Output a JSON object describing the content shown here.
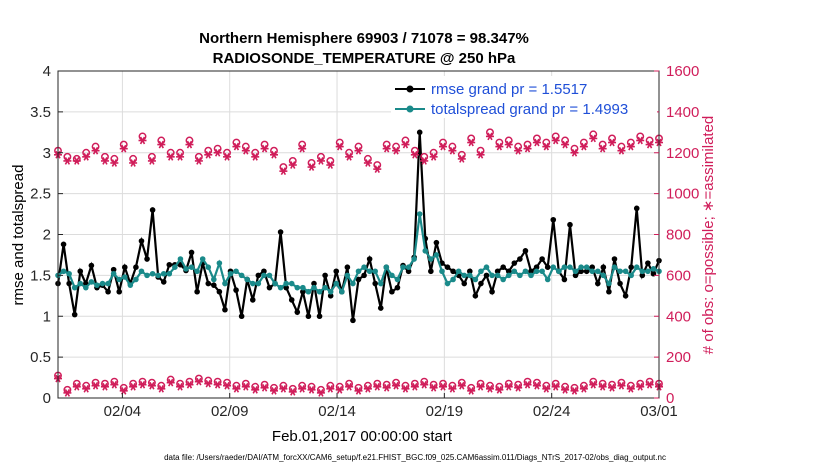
{
  "chart_data": {
    "type": "line",
    "title": "Northern Hemisphere 69903 / 71078 = 98.347%",
    "subtitle": "RADIOSONDE_TEMPERATURE @ 250 hPa",
    "xlabel": "Feb.01,2017 00:00:00 start",
    "ylabel_left": "rmse and totalspread",
    "ylabel_right": "# of obs: o=possible; ∗=assimilated",
    "ylim_left": [
      0,
      4
    ],
    "ylim_right": [
      0,
      1600
    ],
    "xlim_days": [
      0,
      28
    ],
    "yticks_left": [
      "0",
      "0.5",
      "1",
      "1.5",
      "2",
      "2.5",
      "3",
      "3.5",
      "4"
    ],
    "yticks_right": [
      "0",
      "200",
      "400",
      "600",
      "800",
      "1000",
      "1200",
      "1400",
      "1600"
    ],
    "xticks": [
      {
        "day": 3,
        "label": "02/04"
      },
      {
        "day": 8,
        "label": "02/09"
      },
      {
        "day": 13,
        "label": "02/14"
      },
      {
        "day": 18,
        "label": "02/19"
      },
      {
        "day": 23,
        "label": "02/24"
      },
      {
        "day": 28,
        "label": "03/01"
      }
    ],
    "legend": {
      "position": "top-right",
      "entries": [
        "rmse grand pr = 1.5517",
        "totalspread grand pr = 1.4993"
      ]
    },
    "footnote": "data file: /Users/raeder/DAI/ATM_forcXX/CAM6_setup/f.e21.FHIST_BGC.f09_025.CAM6assim.011/Diags_NTrS_2017-02/obs_diag_output.nc",
    "series": [
      {
        "name": "rmse",
        "color": "#000000",
        "axis": "left",
        "values": [
          1.4,
          1.88,
          1.4,
          1.02,
          1.55,
          1.4,
          1.62,
          1.35,
          1.38,
          1.3,
          1.57,
          1.3,
          1.6,
          1.4,
          1.6,
          1.92,
          1.7,
          2.3,
          1.48,
          1.42,
          1.63,
          1.63,
          1.63,
          1.56,
          1.78,
          1.3,
          1.65,
          1.4,
          1.38,
          1.3,
          1.08,
          1.55,
          1.32,
          1.0,
          1.45,
          1.2,
          1.5,
          1.55,
          1.35,
          1.4,
          2.03,
          1.35,
          1.2,
          1.05,
          1.3,
          1.0,
          1.4,
          1.0,
          1.5,
          1.25,
          1.55,
          1.3,
          1.6,
          0.95,
          1.45,
          1.5,
          1.7,
          1.4,
          1.1,
          1.6,
          1.3,
          1.35,
          1.62,
          1.55,
          1.72,
          3.25,
          1.95,
          1.55,
          1.9,
          1.65,
          1.6,
          1.55,
          1.5,
          1.4,
          1.55,
          1.25,
          1.4,
          1.5,
          1.3,
          1.55,
          1.6,
          1.55,
          1.65,
          1.7,
          1.8,
          1.55,
          1.6,
          1.7,
          1.6,
          2.18,
          1.55,
          1.45,
          2.12,
          1.5,
          1.55,
          1.55,
          1.6,
          1.4,
          1.6,
          1.3,
          1.7,
          1.4,
          1.25,
          1.6,
          2.32,
          1.5,
          1.65,
          1.52,
          1.68
        ]
      },
      {
        "name": "totalspread",
        "color": "#1a8a8a",
        "axis": "left",
        "values": [
          1.5,
          1.55,
          1.52,
          1.35,
          1.4,
          1.35,
          1.42,
          1.38,
          1.4,
          1.4,
          1.52,
          1.45,
          1.48,
          1.38,
          1.45,
          1.55,
          1.5,
          1.52,
          1.5,
          1.52,
          1.52,
          1.6,
          1.7,
          1.58,
          1.6,
          1.55,
          1.7,
          1.6,
          1.45,
          1.65,
          1.4,
          1.52,
          1.55,
          1.5,
          1.45,
          1.4,
          1.4,
          1.5,
          1.5,
          1.4,
          1.35,
          1.4,
          1.4,
          1.35,
          1.35,
          1.3,
          1.35,
          1.3,
          1.35,
          1.3,
          1.4,
          1.3,
          1.5,
          1.4,
          1.55,
          1.6,
          1.55,
          1.55,
          1.4,
          1.6,
          1.5,
          1.45,
          1.6,
          1.6,
          1.7,
          2.25,
          1.8,
          1.7,
          1.75,
          1.55,
          1.4,
          1.45,
          1.55,
          1.5,
          1.5,
          1.45,
          1.55,
          1.6,
          1.5,
          1.5,
          1.45,
          1.5,
          1.55,
          1.5,
          1.55,
          1.5,
          1.55,
          1.55,
          1.45,
          1.6,
          1.55,
          1.6,
          1.6,
          1.55,
          1.6,
          1.6,
          1.55,
          1.55,
          1.5,
          1.4,
          1.6,
          1.55,
          1.55,
          1.5,
          1.6,
          1.55,
          1.55,
          1.58,
          1.55
        ]
      },
      {
        "name": "obs possible (top)",
        "color": "#d01d5a",
        "axis": "right",
        "marker": "o",
        "values": [
          1210,
          1180,
          1170,
          1200,
          1230,
          1180,
          1170,
          1240,
          1170,
          1280,
          1180,
          1260,
          1200,
          1200,
          1260,
          1180,
          1210,
          1220,
          1200,
          1250,
          1230,
          1200,
          1240,
          1210,
          1130,
          1160,
          1240,
          1150,
          1180,
          1160,
          1250,
          1200,
          1230,
          1170,
          1140,
          1240,
          1230,
          1260,
          1210,
          1180,
          1200,
          1250,
          1230,
          1190,
          1270,
          1210,
          1300,
          1250,
          1260,
          1230,
          1240,
          1270,
          1250,
          1280,
          1260,
          1220,
          1250,
          1290,
          1240,
          1270,
          1230,
          1250,
          1280,
          1260,
          1270
        ]
      },
      {
        "name": "obs assimilated (top)",
        "color": "#d01d5a",
        "axis": "right",
        "marker": "*",
        "values": [
          1190,
          1160,
          1160,
          1180,
          1210,
          1160,
          1150,
          1220,
          1150,
          1260,
          1160,
          1240,
          1180,
          1180,
          1240,
          1160,
          1190,
          1200,
          1180,
          1230,
          1210,
          1180,
          1220,
          1190,
          1110,
          1140,
          1220,
          1130,
          1160,
          1140,
          1230,
          1180,
          1210,
          1150,
          1120,
          1220,
          1210,
          1240,
          1190,
          1160,
          1180,
          1230,
          1210,
          1170,
          1250,
          1190,
          1280,
          1230,
          1240,
          1210,
          1220,
          1250,
          1230,
          1260,
          1240,
          1200,
          1230,
          1270,
          1220,
          1250,
          1210,
          1230,
          1260,
          1240,
          1250
        ]
      },
      {
        "name": "obs possible (bottom)",
        "color": "#d01d5a",
        "axis": "right",
        "marker": "o",
        "values": [
          110,
          40,
          70,
          60,
          75,
          70,
          80,
          50,
          70,
          80,
          75,
          60,
          90,
          70,
          80,
          95,
          85,
          80,
          75,
          60,
          70,
          55,
          65,
          50,
          60,
          45,
          60,
          55,
          40,
          60,
          55,
          70,
          50,
          60,
          70,
          65,
          75,
          60,
          70,
          80,
          65,
          70,
          60,
          75,
          50,
          70,
          60,
          55,
          70,
          65,
          80,
          75,
          60,
          70,
          55,
          50,
          60,
          80,
          70,
          65,
          75,
          60,
          70,
          80,
          70
        ]
      },
      {
        "name": "obs assimilated (bottom)",
        "color": "#d01d5a",
        "axis": "right",
        "marker": "*",
        "values": [
          95,
          25,
          55,
          45,
          60,
          55,
          65,
          35,
          55,
          65,
          60,
          45,
          75,
          55,
          65,
          80,
          70,
          65,
          60,
          45,
          55,
          40,
          50,
          35,
          45,
          30,
          45,
          40,
          25,
          45,
          40,
          55,
          35,
          45,
          55,
          50,
          60,
          45,
          55,
          65,
          50,
          55,
          45,
          60,
          35,
          55,
          45,
          40,
          55,
          50,
          65,
          60,
          45,
          55,
          40,
          35,
          45,
          65,
          55,
          50,
          60,
          45,
          55,
          65,
          55
        ]
      }
    ]
  }
}
